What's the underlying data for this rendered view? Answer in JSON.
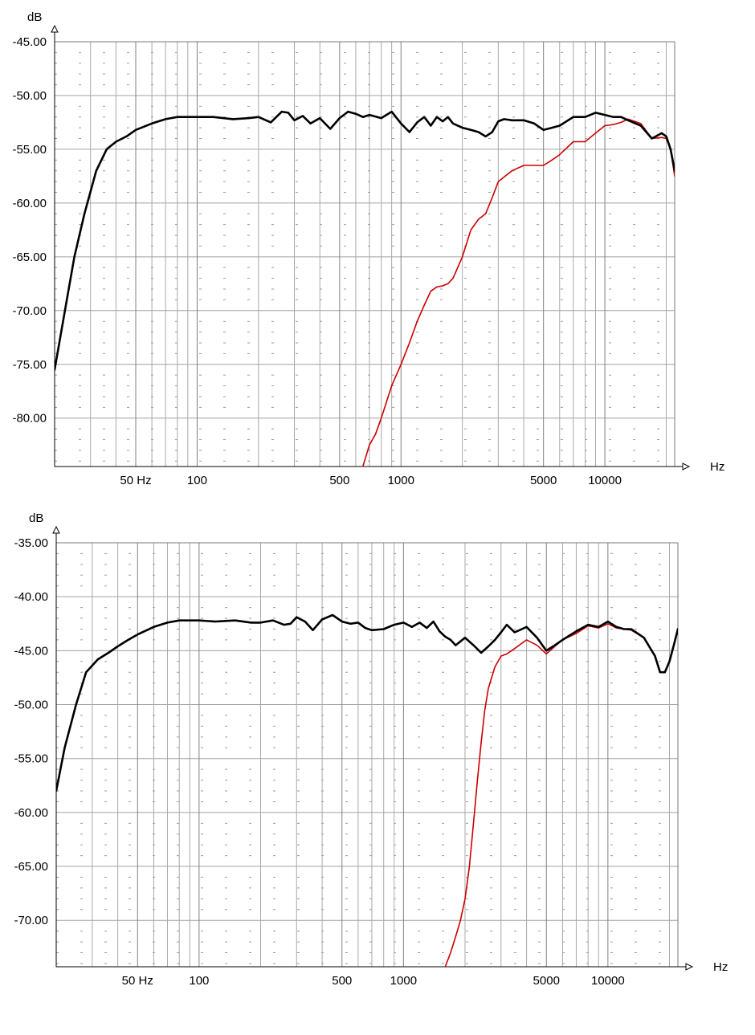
{
  "chart_data": [
    {
      "type": "line",
      "title": "",
      "ylabel": "dB",
      "xlabel": "Hz",
      "xscale": "log",
      "xlim": [
        20,
        22000
      ],
      "ylim": [
        -84.5,
        -45
      ],
      "yticks": [
        -45,
        -50,
        -55,
        -60,
        -65,
        -70,
        -75,
        -80
      ],
      "ytick_labels": [
        "-45.00",
        "-50.00",
        "-55.00",
        "-60.00",
        "-65.00",
        "-70.00",
        "-75.00",
        "-80.00"
      ],
      "xticks": [
        50,
        100,
        500,
        1000,
        5000,
        10000
      ],
      "xtick_labels": [
        "50 Hz",
        "100",
        "500",
        "1000",
        "5000",
        "10000"
      ],
      "grid": true,
      "series": [
        {
          "color": "#000000",
          "x": [
            20,
            22,
            25,
            28,
            32,
            36,
            40,
            45,
            50,
            60,
            70,
            80,
            100,
            120,
            150,
            180,
            200,
            230,
            260,
            280,
            300,
            330,
            360,
            400,
            450,
            500,
            550,
            600,
            650,
            700,
            800,
            900,
            1000,
            1100,
            1200,
            1300,
            1400,
            1500,
            1600,
            1700,
            1800,
            2000,
            2200,
            2400,
            2600,
            2800,
            3000,
            3200,
            3500,
            4000,
            4500,
            5000,
            5500,
            6000,
            7000,
            8000,
            9000,
            10000,
            11000,
            12000,
            13000,
            15000,
            17000,
            19000,
            20000,
            21000,
            22000
          ],
          "y": [
            -75.5,
            -71,
            -65,
            -61,
            -57,
            -55,
            -54.3,
            -53.8,
            -53.2,
            -52.6,
            -52.2,
            -52.0,
            -52.0,
            -52.0,
            -52.2,
            -52.1,
            -52.0,
            -52.5,
            -51.5,
            -51.6,
            -52.3,
            -51.9,
            -52.6,
            -52.1,
            -53.1,
            -52.1,
            -51.5,
            -51.7,
            -52.0,
            -51.8,
            -52.1,
            -51.5,
            -52.6,
            -53.4,
            -52.5,
            -52.0,
            -52.8,
            -52.0,
            -52.4,
            -52.0,
            -52.6,
            -53.0,
            -53.2,
            -53.4,
            -53.8,
            -53.4,
            -52.4,
            -52.2,
            -52.3,
            -52.3,
            -52.6,
            -53.2,
            -53.0,
            -52.8,
            -52.0,
            -52.0,
            -51.6,
            -51.8,
            -52.0,
            -52.0,
            -52.3,
            -52.8,
            -54.0,
            -53.5,
            -53.8,
            -55.0,
            -57.0
          ]
        },
        {
          "color": "#cc0000",
          "x": [
            650,
            700,
            750,
            800,
            900,
            1000,
            1100,
            1200,
            1300,
            1400,
            1500,
            1600,
            1700,
            1800,
            2000,
            2200,
            2400,
            2600,
            2800,
            3000,
            3500,
            4000,
            4500,
            5000,
            5500,
            6000,
            7000,
            8000,
            9000,
            10000,
            11000,
            12000,
            13000,
            15000,
            17000,
            19000,
            20000,
            21000,
            22000
          ],
          "y": [
            -84.5,
            -82.5,
            -81.5,
            -80,
            -77,
            -75,
            -73,
            -71,
            -69.5,
            -68.2,
            -67.8,
            -67.7,
            -67.5,
            -67,
            -65,
            -62.5,
            -61.5,
            -61,
            -59.5,
            -58,
            -57,
            -56.5,
            -56.5,
            -56.5,
            -56,
            -55.5,
            -54.3,
            -54.3,
            -53.5,
            -52.8,
            -52.7,
            -52.5,
            -52.2,
            -52.6,
            -54.0,
            -53.9,
            -54.0,
            -55.0,
            -57.5
          ]
        }
      ]
    },
    {
      "type": "line",
      "title": "",
      "ylabel": "dB",
      "xlabel": "Hz",
      "xscale": "log",
      "xlim": [
        20,
        22000
      ],
      "ylim": [
        -74.3,
        -35
      ],
      "yticks": [
        -35,
        -40,
        -45,
        -50,
        -55,
        -60,
        -65,
        -70
      ],
      "ytick_labels": [
        "-35.00",
        "-40.00",
        "-45.00",
        "-50.00",
        "-55.00",
        "-60.00",
        "-65.00",
        "-70.00"
      ],
      "xticks": [
        50,
        100,
        500,
        1000,
        5000,
        10000
      ],
      "xtick_labels": [
        "50 Hz",
        "100",
        "500",
        "1000",
        "5000",
        "10000"
      ],
      "grid": true,
      "series": [
        {
          "color": "#000000",
          "x": [
            20,
            22,
            25,
            28,
            32,
            36,
            40,
            45,
            50,
            60,
            70,
            80,
            100,
            120,
            150,
            180,
            200,
            230,
            260,
            280,
            300,
            330,
            360,
            400,
            450,
            500,
            550,
            600,
            650,
            700,
            800,
            900,
            1000,
            1100,
            1200,
            1300,
            1400,
            1500,
            1600,
            1700,
            1800,
            2000,
            2200,
            2400,
            2600,
            2800,
            3000,
            3200,
            3500,
            4000,
            4500,
            5000,
            5500,
            6000,
            7000,
            8000,
            9000,
            10000,
            11000,
            12000,
            13000,
            15000,
            17000,
            18000,
            19000,
            20000,
            21000,
            22000
          ],
          "y": [
            -58,
            -54,
            -50,
            -47,
            -45.8,
            -45.2,
            -44.6,
            -44.0,
            -43.5,
            -42.8,
            -42.4,
            -42.2,
            -42.2,
            -42.3,
            -42.2,
            -42.4,
            -42.4,
            -42.2,
            -42.6,
            -42.5,
            -41.9,
            -42.3,
            -43.1,
            -42.1,
            -41.7,
            -42.3,
            -42.5,
            -42.4,
            -42.9,
            -43.1,
            -43.0,
            -42.6,
            -42.4,
            -42.8,
            -42.4,
            -42.9,
            -42.3,
            -43.2,
            -43.7,
            -44.0,
            -44.5,
            -43.8,
            -44.5,
            -45.2,
            -44.6,
            -44.0,
            -43.3,
            -42.6,
            -43.3,
            -42.8,
            -43.8,
            -45.0,
            -44.5,
            -44.0,
            -43.2,
            -42.6,
            -42.8,
            -42.3,
            -42.8,
            -43.0,
            -43.0,
            -43.8,
            -45.5,
            -47.0,
            -47.0,
            -46.0,
            -44.5,
            -43.0
          ]
        },
        {
          "color": "#cc0000",
          "x": [
            1600,
            1700,
            1800,
            1900,
            2000,
            2100,
            2200,
            2300,
            2400,
            2500,
            2600,
            2800,
            3000,
            3200,
            3500,
            4000,
            4500,
            5000,
            5500,
            6000,
            7000,
            8000,
            9000,
            10000,
            11000,
            12000,
            13000,
            15000,
            17000,
            18000,
            19000,
            20000,
            21000,
            22000
          ],
          "y": [
            -74.3,
            -73,
            -71.5,
            -70,
            -68,
            -65,
            -61,
            -57,
            -53.5,
            -50.5,
            -48.5,
            -46.5,
            -45.5,
            -45.3,
            -44.8,
            -44.0,
            -44.5,
            -45.3,
            -44.6,
            -44.0,
            -43.4,
            -42.7,
            -42.9,
            -42.5,
            -42.9,
            -43.0,
            -43.1,
            -43.8,
            -45.5,
            -47.0,
            -47.0,
            -46.0,
            -44.5,
            -43.0
          ]
        }
      ]
    }
  ]
}
